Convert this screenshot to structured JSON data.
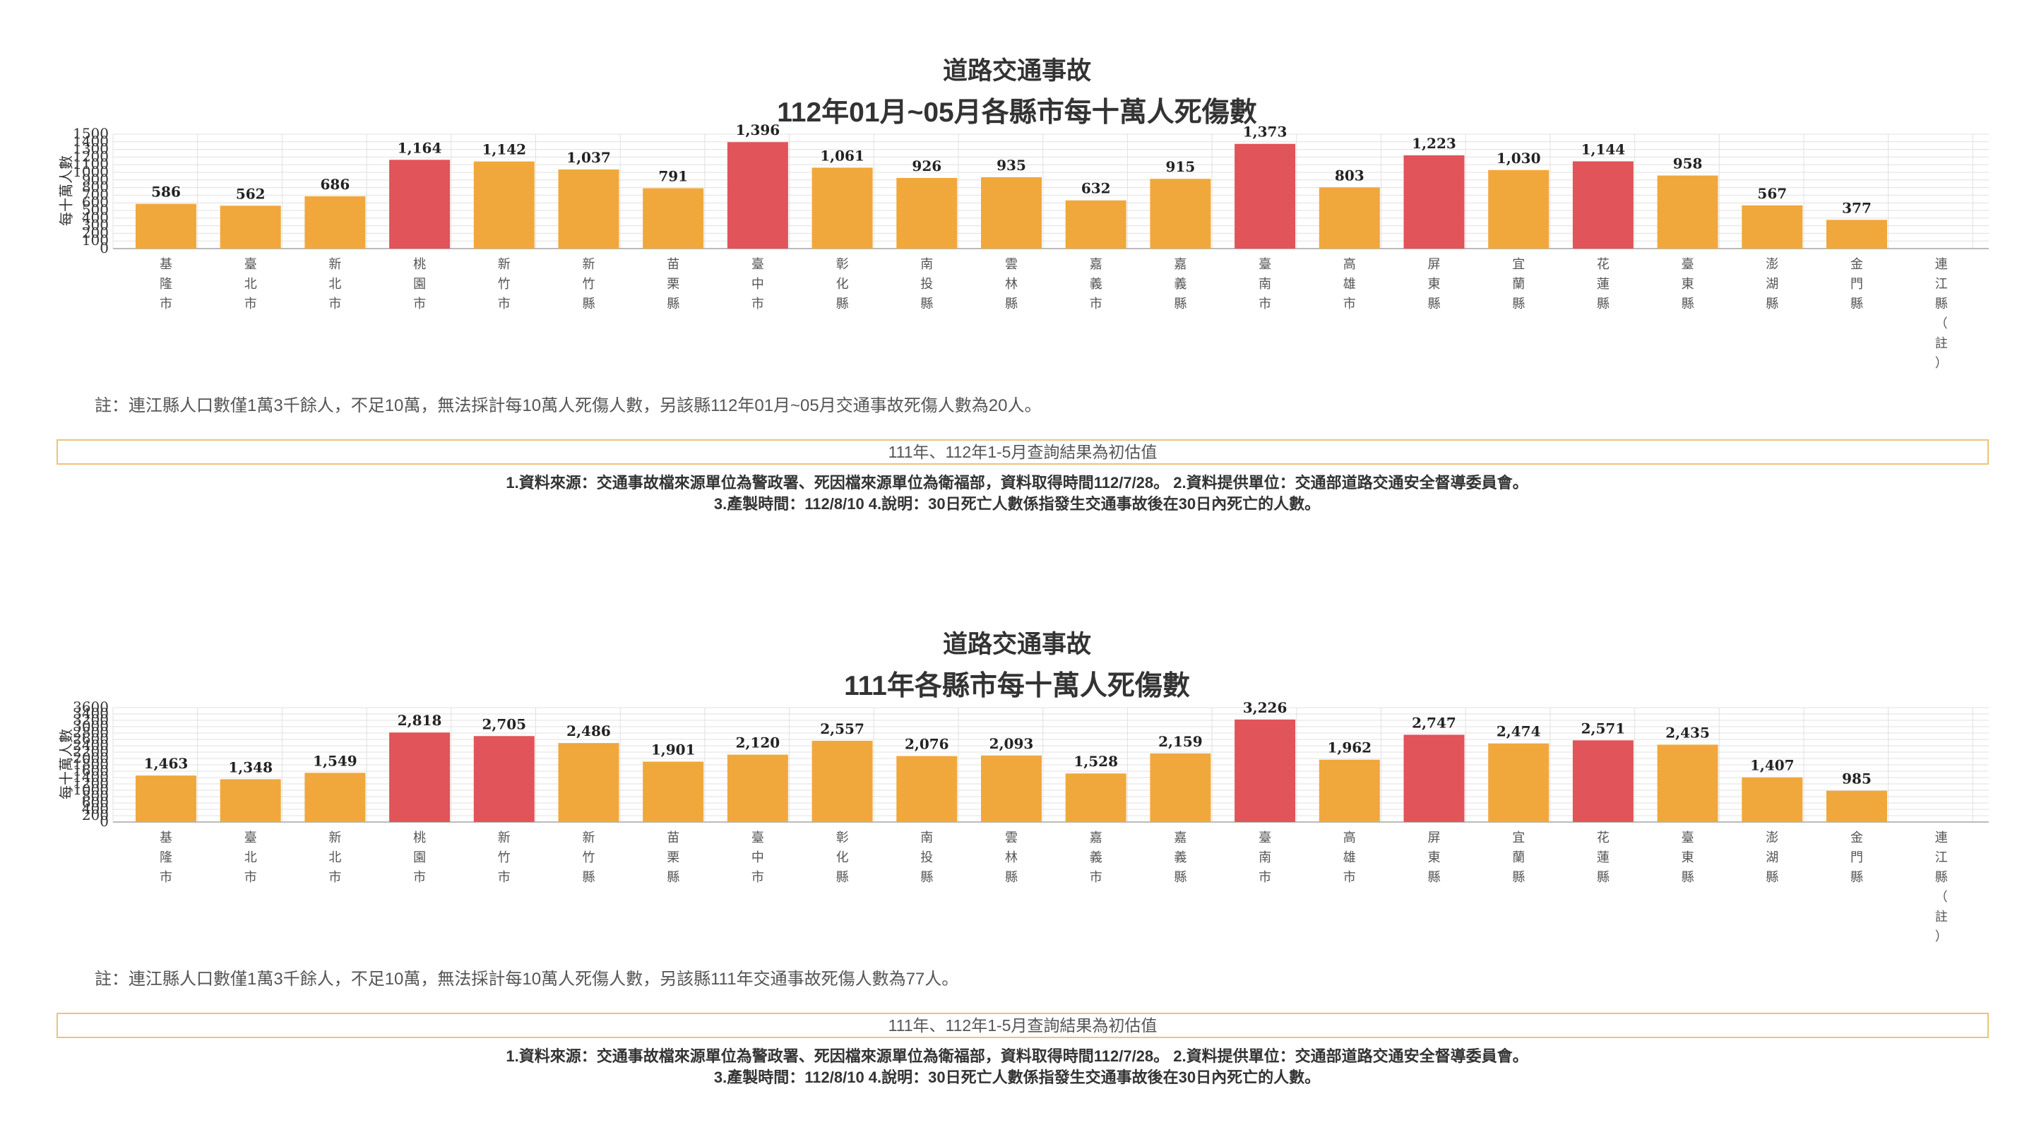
{
  "chart_data": [
    {
      "type": "bar",
      "title": "道路交通事故",
      "subtitle": "112年01月~05月各縣市每十萬人死傷數",
      "ylabel": "每十萬人數",
      "ylim": [
        0,
        1500
      ],
      "yticks": [
        "0",
        "100",
        "200",
        "300",
        "400",
        "500",
        "600",
        "700",
        "800",
        "900",
        "1000",
        "1100",
        "1200",
        "1300",
        "1400",
        "1500"
      ],
      "grid": true,
      "categories": [
        "基隆市",
        "臺北市",
        "新北市",
        "桃園市",
        "新竹市",
        "新竹縣",
        "苗栗縣",
        "臺中市",
        "彰化縣",
        "南投縣",
        "雲林縣",
        "嘉義市",
        "嘉義縣",
        "臺南市",
        "高雄市",
        "屏東縣",
        "宜蘭縣",
        "花蓮縣",
        "臺東縣",
        "澎湖縣",
        "金門縣",
        "連江縣（註）"
      ],
      "values": [
        586,
        562,
        686,
        1164,
        1142,
        1037,
        791,
        1396,
        1061,
        926,
        935,
        632,
        915,
        1373,
        803,
        1223,
        1030,
        1144,
        958,
        567,
        377,
        null
      ],
      "value_labels": [
        "586",
        "562",
        "686",
        "1,164",
        "1,142",
        "1,037",
        "791",
        "1,396",
        "1,061",
        "926",
        "935",
        "632",
        "915",
        "1,373",
        "803",
        "1,223",
        "1,030",
        "1,144",
        "958",
        "567",
        "377",
        ""
      ],
      "highlight": [
        false,
        false,
        false,
        true,
        false,
        false,
        false,
        true,
        false,
        false,
        false,
        false,
        false,
        true,
        false,
        true,
        false,
        true,
        false,
        false,
        false,
        false
      ],
      "note": "註：連江縣人口數僅1萬3千餘人，不足10萬，無法採計每10萬人死傷人數，另該縣112年01月~05月交通事故死傷人數為20人。",
      "notice": "111年、112年1-5月查詢結果為初估值",
      "source_line1": "1.資料來源：交通事故檔來源單位為警政署、死因檔來源單位為衛福部，資料取得時間112/7/28。 2.資料提供單位：交通部道路交通安全督導委員會。",
      "source_line2": "3.產製時間：112/8/10 4.說明：30日死亡人數係指發生交通事故後在30日內死亡的人數。"
    },
    {
      "type": "bar",
      "title": "道路交通事故",
      "subtitle": "111年各縣市每十萬人死傷數",
      "ylabel": "每十萬人數",
      "ylim": [
        0,
        3600
      ],
      "yticks": [
        "0",
        "200",
        "400",
        "600",
        "800",
        "1000",
        "1200",
        "1400",
        "1600",
        "1800",
        "2000",
        "2200",
        "2400",
        "2600",
        "2800",
        "3000",
        "3200",
        "3400",
        "3600"
      ],
      "grid": true,
      "categories": [
        "基隆市",
        "臺北市",
        "新北市",
        "桃園市",
        "新竹市",
        "新竹縣",
        "苗栗縣",
        "臺中市",
        "彰化縣",
        "南投縣",
        "雲林縣",
        "嘉義市",
        "嘉義縣",
        "臺南市",
        "高雄市",
        "屏東縣",
        "宜蘭縣",
        "花蓮縣",
        "臺東縣",
        "澎湖縣",
        "金門縣",
        "連江縣（註）"
      ],
      "values": [
        1463,
        1348,
        1549,
        2818,
        2705,
        2486,
        1901,
        2120,
        2557,
        2076,
        2093,
        1528,
        2159,
        3226,
        1962,
        2747,
        2474,
        2571,
        2435,
        1407,
        985,
        null
      ],
      "value_labels": [
        "1,463",
        "1,348",
        "1,549",
        "2,818",
        "2,705",
        "2,486",
        "1,901",
        "2,120",
        "2,557",
        "2,076",
        "2,093",
        "1,528",
        "2,159",
        "3,226",
        "1,962",
        "2,747",
        "2,474",
        "2,571",
        "2,435",
        "1,407",
        "985",
        ""
      ],
      "highlight": [
        false,
        false,
        false,
        true,
        true,
        false,
        false,
        false,
        false,
        false,
        false,
        false,
        false,
        true,
        false,
        true,
        false,
        true,
        false,
        false,
        false,
        false
      ],
      "note": "註：連江縣人口數僅1萬3千餘人，不足10萬，無法採計每10萬人死傷人數，另該縣111年交通事故死傷人數為77人。",
      "notice": "111年、112年1-5月查詢結果為初估值",
      "source_line1": "1.資料來源：交通事故檔來源單位為警政署、死因檔來源單位為衛福部，資料取得時間112/7/28。 2.資料提供單位：交通部道路交通安全督導委員會。",
      "source_line2": "3.產製時間：112/8/10 4.說明：30日死亡人數係指發生交通事故後在30日內死亡的人數。"
    }
  ],
  "colors": {
    "bar": "#f0a83c",
    "bar_highlight": "#e0545a",
    "grid": "#e0e0e0",
    "axis": "#bbbbbb",
    "notice_border": "#f0c27a"
  }
}
